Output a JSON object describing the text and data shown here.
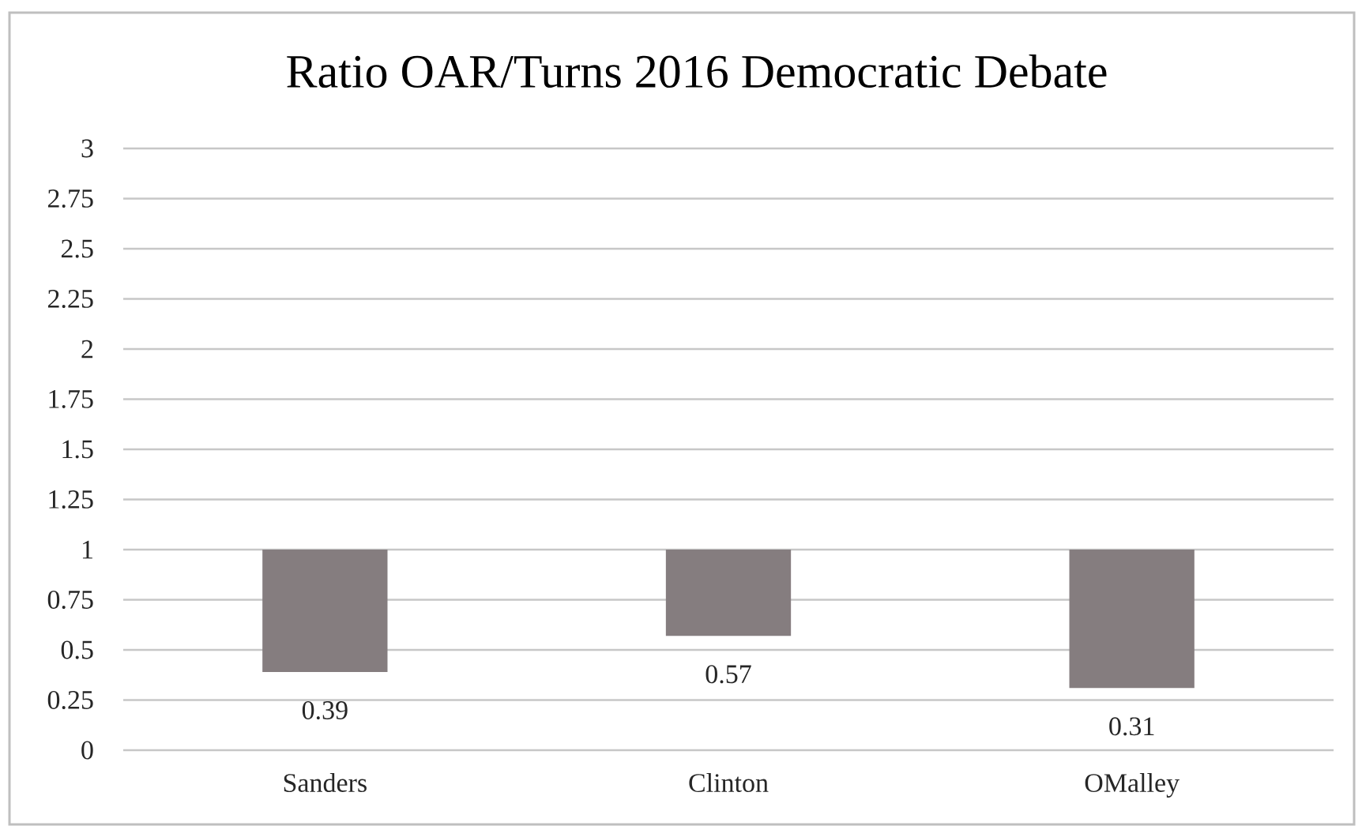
{
  "chart_data": {
    "type": "bar",
    "title": "Ratio OAR/Turns 2016 Democratic Debate",
    "categories": [
      "Sanders",
      "Clinton",
      "OMalley"
    ],
    "base": [
      1,
      1,
      1
    ],
    "values": [
      -0.61,
      -0.43,
      -0.69
    ],
    "value_labels": [
      "0.39",
      "0.57",
      "0.31"
    ],
    "color": "#857d7f",
    "ylim": [
      0,
      3
    ],
    "yticks": [
      0,
      0.25,
      0.5,
      0.75,
      1,
      1.25,
      1.5,
      1.75,
      2,
      2.25,
      2.5,
      2.75,
      3
    ],
    "grid": "y"
  }
}
